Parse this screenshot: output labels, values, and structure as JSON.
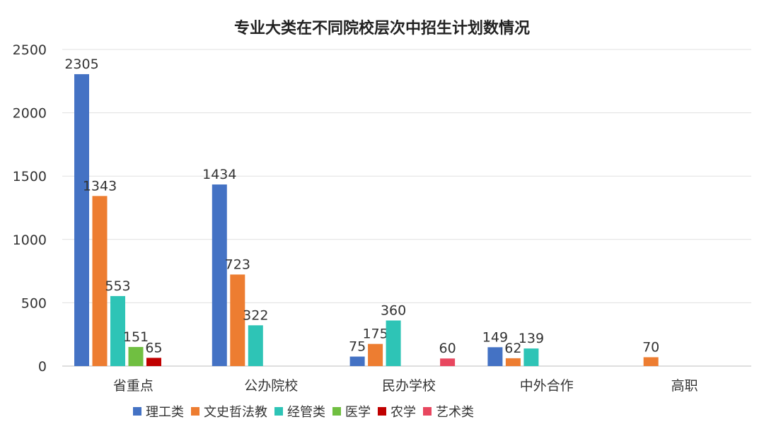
{
  "chart_data": {
    "type": "bar",
    "title": "专业大类在不同院校层次中招生计划数情况",
    "categories": [
      "省重点",
      "公办院校",
      "民办学校",
      "中外合作",
      "高职"
    ],
    "series": [
      {
        "name": "理工类",
        "color": "#4472C4",
        "values": [
          2305,
          1434,
          75,
          149,
          null
        ]
      },
      {
        "name": "文史哲法教",
        "color": "#ED7D31",
        "values": [
          1343,
          723,
          175,
          62,
          70
        ]
      },
      {
        "name": "经管类",
        "color": "#2EC4B6",
        "values": [
          553,
          322,
          360,
          139,
          null
        ]
      },
      {
        "name": "医学",
        "color": "#70BF41",
        "values": [
          151,
          null,
          null,
          null,
          null
        ]
      },
      {
        "name": "农学",
        "color": "#C00000",
        "values": [
          65,
          null,
          null,
          null,
          null
        ]
      },
      {
        "name": "艺术类",
        "color": "#E8475F",
        "values": [
          null,
          null,
          60,
          null,
          null
        ]
      }
    ],
    "ylim": [
      0,
      2500
    ],
    "yticks": [
      0,
      500,
      1000,
      1500,
      2000,
      2500
    ],
    "grid": true,
    "legend_position": "bottom"
  }
}
